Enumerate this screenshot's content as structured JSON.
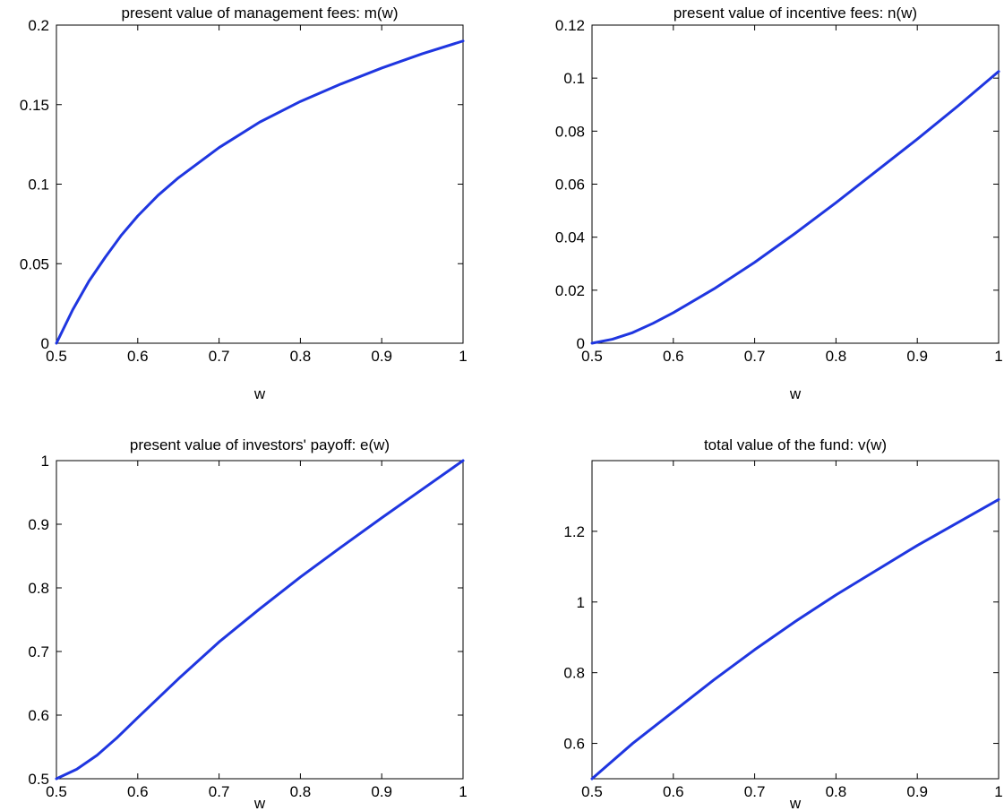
{
  "figure": {
    "curve_color": "#1f36e0"
  },
  "chart_data": [
    {
      "type": "line",
      "title": "present value of management fees: m(w)",
      "xlabel": "w",
      "ylabel": "",
      "xlim": [
        0.5,
        1
      ],
      "ylim": [
        0,
        0.2
      ],
      "xticks": [
        0.5,
        0.6,
        0.7,
        0.8,
        0.9,
        1
      ],
      "xtick_labels": [
        "0.5",
        "0.6",
        "0.7",
        "0.8",
        "0.9",
        "1"
      ],
      "yticks": [
        0,
        0.05,
        0.1,
        0.15,
        0.2
      ],
      "ytick_labels": [
        "0",
        "0.05",
        "0.1",
        "0.15",
        "0.2"
      ],
      "grid": false,
      "series": [
        {
          "x": [
            0.5,
            0.52,
            0.54,
            0.56,
            0.58,
            0.6,
            0.625,
            0.65,
            0.7,
            0.75,
            0.8,
            0.85,
            0.9,
            0.95,
            1.0
          ],
          "values": [
            0.0,
            0.021,
            0.039,
            0.054,
            0.068,
            0.08,
            0.093,
            0.104,
            0.123,
            0.139,
            0.152,
            0.163,
            0.173,
            0.182,
            0.19
          ]
        }
      ]
    },
    {
      "type": "line",
      "title": "present value of incentive fees: n(w)",
      "xlabel": "w",
      "ylabel": "",
      "xlim": [
        0.5,
        1
      ],
      "ylim": [
        0,
        0.12
      ],
      "xticks": [
        0.5,
        0.6,
        0.7,
        0.8,
        0.9,
        1
      ],
      "xtick_labels": [
        "0.5",
        "0.6",
        "0.7",
        "0.8",
        "0.9",
        "1"
      ],
      "yticks": [
        0,
        0.02,
        0.04,
        0.06,
        0.08,
        0.1,
        0.12
      ],
      "ytick_labels": [
        "0",
        "0.02",
        "0.04",
        "0.06",
        "0.08",
        "0.1",
        "0.12"
      ],
      "grid": false,
      "series": [
        {
          "x": [
            0.5,
            0.525,
            0.55,
            0.575,
            0.6,
            0.65,
            0.7,
            0.75,
            0.8,
            0.85,
            0.9,
            0.95,
            1.0
          ],
          "values": [
            0.0,
            0.0015,
            0.004,
            0.0075,
            0.0115,
            0.0205,
            0.0305,
            0.0415,
            0.053,
            0.065,
            0.077,
            0.0895,
            0.1025
          ]
        }
      ]
    },
    {
      "type": "line",
      "title": "present value of investors' payoff: e(w)",
      "xlabel": "w",
      "ylabel": "",
      "xlim": [
        0.5,
        1
      ],
      "ylim": [
        0.5,
        1
      ],
      "xticks": [
        0.5,
        0.6,
        0.7,
        0.8,
        0.9,
        1
      ],
      "xtick_labels": [
        "0.5",
        "0.6",
        "0.7",
        "0.8",
        "0.9",
        "1"
      ],
      "yticks": [
        0.5,
        0.6,
        0.7,
        0.8,
        0.9,
        1
      ],
      "ytick_labels": [
        "0.5",
        "0.6",
        "0.7",
        "0.8",
        "0.9",
        "1"
      ],
      "grid": false,
      "series": [
        {
          "x": [
            0.5,
            0.525,
            0.55,
            0.575,
            0.6,
            0.65,
            0.7,
            0.75,
            0.8,
            0.85,
            0.9,
            0.95,
            1.0
          ],
          "values": [
            0.5,
            0.515,
            0.537,
            0.565,
            0.596,
            0.657,
            0.715,
            0.767,
            0.817,
            0.864,
            0.91,
            0.955,
            1.0
          ]
        }
      ]
    },
    {
      "type": "line",
      "title": "total value of the fund: v(w)",
      "xlabel": "w",
      "ylabel": "",
      "xlim": [
        0.5,
        1
      ],
      "ylim": [
        0.5,
        1.4
      ],
      "xticks": [
        0.5,
        0.6,
        0.7,
        0.8,
        0.9,
        1
      ],
      "xtick_labels": [
        "0.5",
        "0.6",
        "0.7",
        "0.8",
        "0.9",
        "1"
      ],
      "yticks": [
        0.6,
        0.8,
        1.0,
        1.2
      ],
      "ytick_labels": [
        "0.6",
        "0.8",
        "1",
        "1.2"
      ],
      "grid": false,
      "series": [
        {
          "x": [
            0.5,
            0.55,
            0.6,
            0.65,
            0.7,
            0.75,
            0.8,
            0.85,
            0.9,
            0.95,
            1.0
          ],
          "values": [
            0.5,
            0.6,
            0.69,
            0.78,
            0.865,
            0.945,
            1.02,
            1.09,
            1.16,
            1.225,
            1.29
          ]
        }
      ]
    }
  ]
}
